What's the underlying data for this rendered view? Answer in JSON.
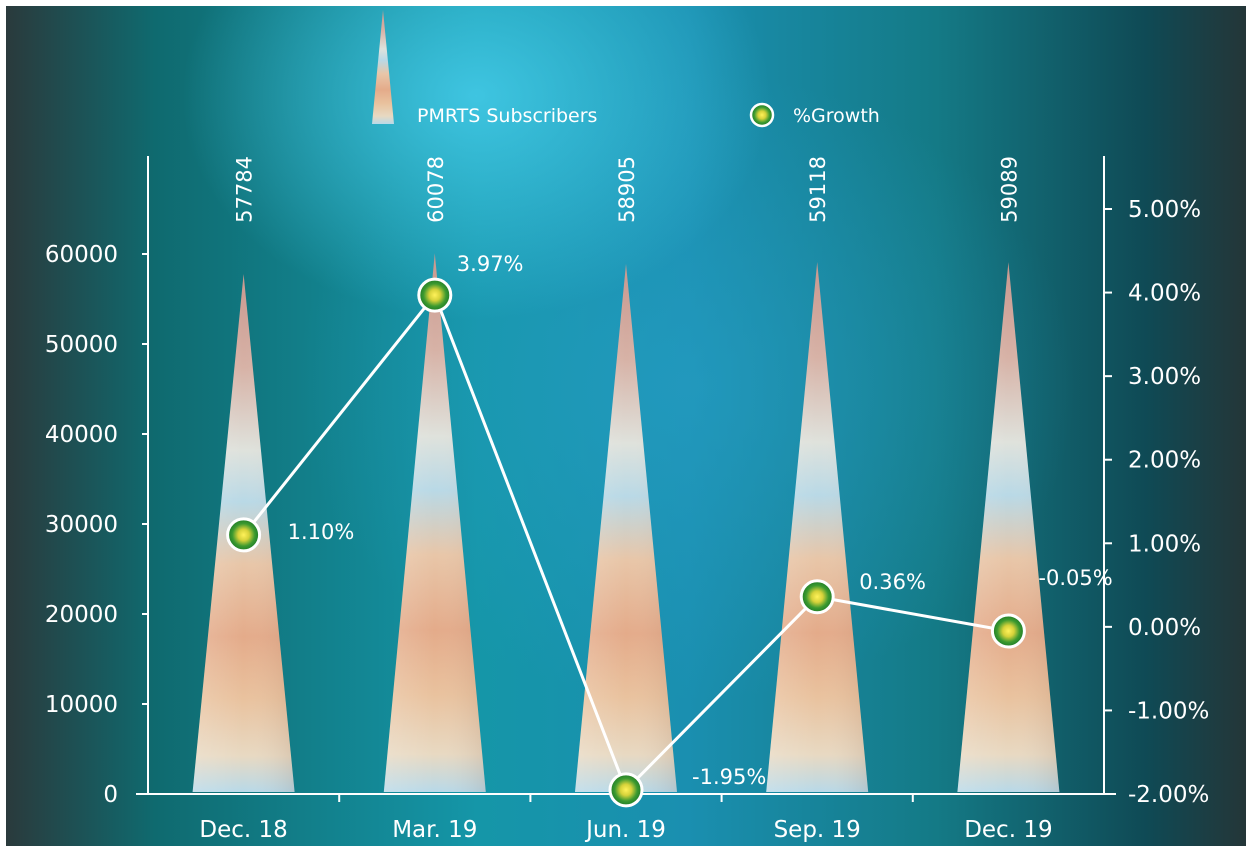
{
  "chart_data": {
    "type": "bar",
    "categories": [
      "Dec. 18",
      "Mar. 19",
      "Jun. 19",
      "Sep. 19",
      "Dec. 19"
    ],
    "series": [
      {
        "name": "PMRTS Subscribers",
        "values": [
          57784,
          60078,
          58905,
          59118,
          59089
        ],
        "axis": "left",
        "shape": "pyramid"
      },
      {
        "name": "%Growth",
        "values": [
          1.1,
          3.97,
          -1.95,
          0.36,
          -0.05
        ],
        "axis": "right",
        "type": "line"
      }
    ],
    "value_labels": [
      "57784",
      "60078",
      "58905",
      "59118",
      "59089"
    ],
    "growth_labels": [
      "1.10%",
      "3.97%",
      "-1.95%",
      "0.36%",
      "-0.05%"
    ],
    "left_axis": {
      "ylim": [
        0,
        70000
      ],
      "ticks": [
        0,
        10000,
        20000,
        30000,
        40000,
        50000,
        60000
      ],
      "tick_labels": [
        "0",
        "10000",
        "20000",
        "30000",
        "40000",
        "50000",
        "60000"
      ]
    },
    "right_axis": {
      "ylim": [
        -2.0,
        5.5
      ],
      "ticks": [
        -2,
        -1,
        0,
        1,
        2,
        3,
        4,
        5
      ],
      "tick_labels": [
        "-2.00%",
        "-1.00%",
        "0.00%",
        "1.00%",
        "2.00%",
        "3.00%",
        "4.00%",
        "5.00%"
      ]
    },
    "legend": {
      "position": "top",
      "entries": [
        "PMRTS Subscribers",
        "%Growth"
      ]
    },
    "grid": false,
    "colors": {
      "line": "#ffffff",
      "marker_fill": "#1e8a2e",
      "marker_center": "#f2e030",
      "text": "#ffffff"
    }
  }
}
